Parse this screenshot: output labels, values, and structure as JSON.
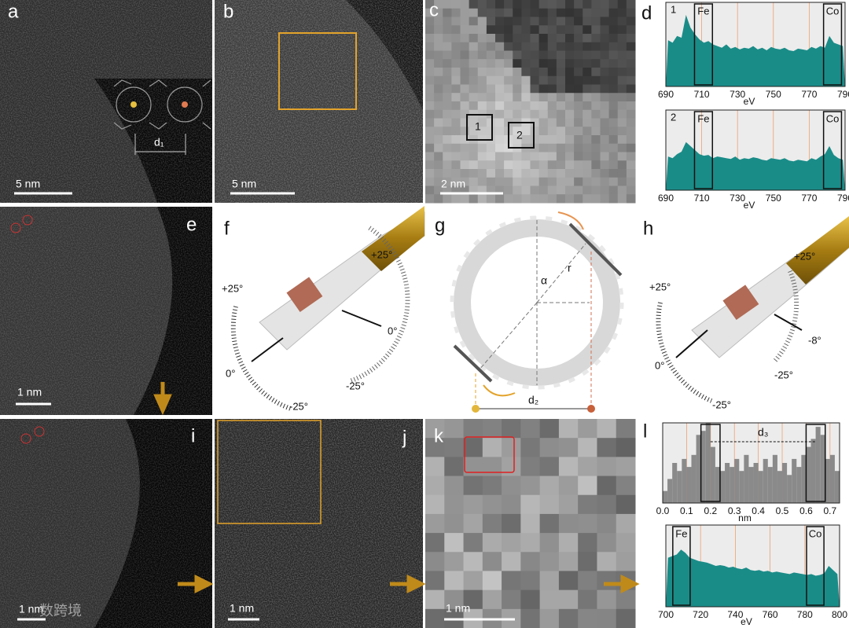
{
  "panels": {
    "a": {
      "label": "a",
      "scale_bar": "5 nm",
      "annotation": "d₁"
    },
    "b": {
      "label": "b",
      "scale_bar": "5 nm"
    },
    "c": {
      "label": "c",
      "scale_bar": "2 nm",
      "boxes": [
        "1",
        "2"
      ]
    },
    "d": {
      "label": "d",
      "charts": [
        {
          "type": "area",
          "number": "1",
          "color": "#1a8c88",
          "xlim": [
            690,
            790
          ],
          "xticks": [
            690,
            710,
            730,
            750,
            770,
            790
          ],
          "xlabel": "eV",
          "ylim": [
            0,
            100
          ],
          "boxes": [
            {
              "label": "Fe",
              "range": [
                706,
                716
              ]
            },
            {
              "label": "Co",
              "range": [
                778,
                788
              ]
            }
          ],
          "values": [
            55,
            52,
            60,
            58,
            85,
            70,
            62,
            56,
            52,
            54,
            50,
            48,
            46,
            50,
            45,
            47,
            44,
            46,
            45,
            48,
            44,
            46,
            43,
            47,
            45,
            44,
            46,
            43,
            42,
            45,
            44,
            43,
            47,
            45,
            48,
            46,
            60,
            52,
            50,
            48
          ]
        },
        {
          "type": "area",
          "number": "2",
          "color": "#1a8c88",
          "xlim": [
            690,
            790
          ],
          "xticks": [
            690,
            710,
            730,
            750,
            770,
            790
          ],
          "xlabel": "eV",
          "ylim": [
            0,
            100
          ],
          "boxes": [
            {
              "label": "Fe",
              "range": [
                706,
                716
              ]
            },
            {
              "label": "Co",
              "range": [
                778,
                788
              ]
            }
          ],
          "values": [
            42,
            40,
            45,
            48,
            60,
            55,
            50,
            45,
            43,
            44,
            40,
            42,
            41,
            40,
            39,
            42,
            38,
            40,
            39,
            41,
            40,
            38,
            37,
            40,
            39,
            38,
            40,
            37,
            36,
            38,
            37,
            36,
            40,
            38,
            42,
            45,
            55,
            44,
            40,
            38
          ]
        }
      ]
    },
    "e": {
      "label": "e",
      "scale_bar": "1 nm"
    },
    "f": {
      "label": "f",
      "angles": [
        "+25°",
        "0°",
        "-25°",
        "+25°",
        "0°",
        "-25°"
      ]
    },
    "g": {
      "label": "g",
      "symbols": [
        "α",
        "r",
        "d₂"
      ]
    },
    "h": {
      "label": "h",
      "angles": [
        "+25°",
        "0°",
        "-25°",
        "+25°",
        "-8°",
        "-25°"
      ]
    },
    "i": {
      "label": "i",
      "scale_bar": "1 nm",
      "watermark": "数跨境"
    },
    "j": {
      "label": "j",
      "scale_bar": "1 nm"
    },
    "k": {
      "label": "k",
      "scale_bar": "1 nm"
    },
    "l": {
      "label": "l",
      "charts": [
        {
          "type": "bar",
          "color": "#8a8a8a",
          "xlim": [
            0,
            0.74
          ],
          "xticks": [
            {
              "value": 0,
              "label": "0.0"
            },
            0.1,
            0.2,
            0.3,
            0.4,
            0.5,
            0.6,
            0.7
          ],
          "xlabel": "nm",
          "ylim": [
            0,
            100
          ],
          "annotation": "d₃",
          "boxes": [
            {
              "range": [
                0.16,
                0.24
              ]
            },
            {
              "range": [
                0.6,
                0.68
              ]
            }
          ],
          "values": [
            15,
            30,
            50,
            40,
            55,
            45,
            60,
            85,
            90,
            100,
            70,
            45,
            40,
            50,
            45,
            55,
            40,
            60,
            45,
            50,
            40,
            55,
            45,
            60,
            40,
            50,
            35,
            55,
            45,
            60,
            70,
            80,
            95,
            85,
            55,
            60,
            40
          ]
        },
        {
          "type": "area",
          "color": "#1a8c88",
          "xlim": [
            700,
            800
          ],
          "xticks": [
            700,
            720,
            740,
            760,
            780,
            800
          ],
          "xlabel": "eV",
          "ylim": [
            0,
            100
          ],
          "boxes": [
            {
              "label": "Fe",
              "range": [
                704,
                714
              ]
            },
            {
              "label": "Co",
              "range": [
                781,
                791
              ]
            }
          ],
          "values": [
            60,
            62,
            64,
            70,
            66,
            60,
            58,
            56,
            55,
            54,
            52,
            50,
            51,
            50,
            48,
            49,
            47,
            46,
            48,
            45,
            44,
            45,
            43,
            44,
            42,
            43,
            42,
            41,
            40,
            42,
            41,
            40,
            39,
            40,
            38,
            39,
            41,
            50,
            45,
            40
          ]
        }
      ]
    }
  }
}
